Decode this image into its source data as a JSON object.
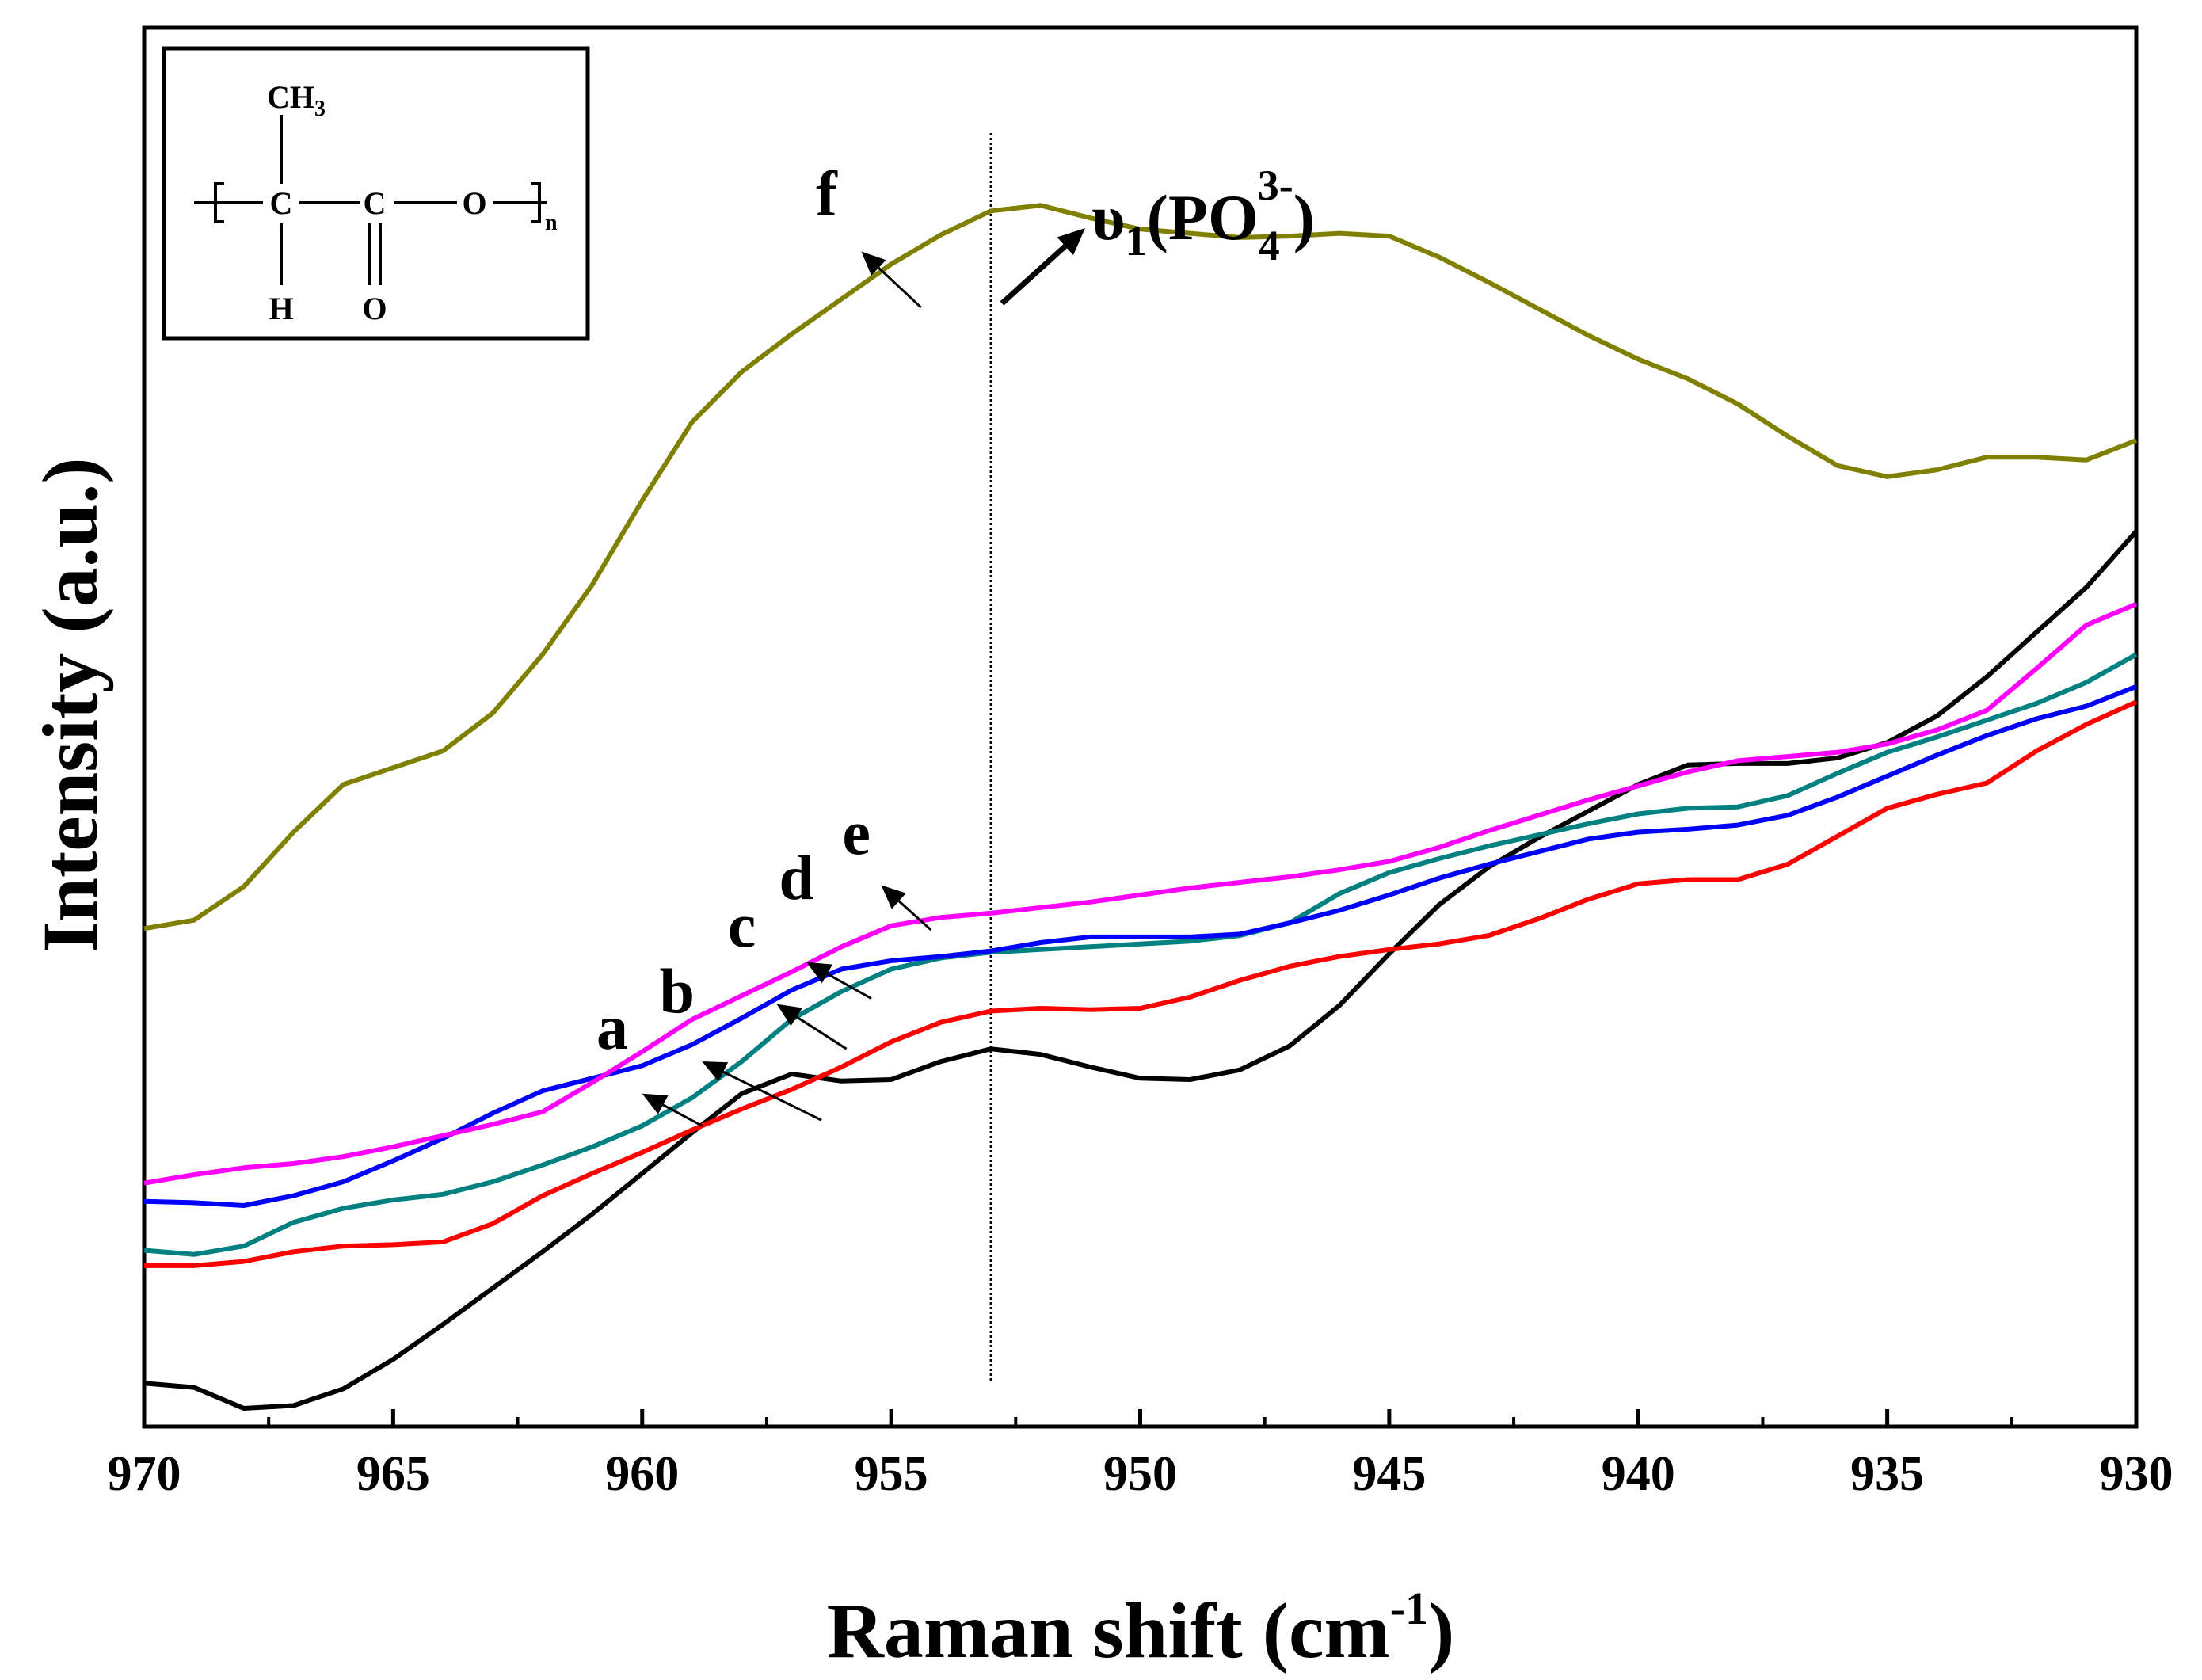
{
  "chart_data": {
    "type": "line",
    "xlabel": "Raman shift (cm",
    "xlabel_sup": "-1",
    "xlabel_close": ")",
    "ylabel": "Intensity (a.u.)",
    "xlim": [
      970,
      930
    ],
    "ylim": [
      0,
      100
    ],
    "x_ticks": [
      "970",
      "965",
      "960",
      "955",
      "950",
      "945",
      "940",
      "935",
      "930"
    ],
    "reference_line_x": 953,
    "annotation": {
      "prefix": "υ",
      "sub1": "1",
      "main": "(PO",
      "sub2": "4",
      "sup": "3-",
      "close": ")"
    },
    "inset_structure": {
      "ch3": "CH",
      "ch3_sub": "3",
      "c1": "C",
      "c2": "C",
      "o_chain": "O",
      "h": "H",
      "o_double": "O",
      "n": "n"
    },
    "series": [
      {
        "name": "a",
        "color": "#000000",
        "points": [
          [
            970,
            3.1
          ],
          [
            969,
            2.8
          ],
          [
            968,
            1.3
          ],
          [
            967,
            1.5
          ],
          [
            966,
            2.7
          ],
          [
            965,
            4.8
          ],
          [
            964,
            7.3
          ],
          [
            963,
            9.9
          ],
          [
            962,
            12.5
          ],
          [
            961,
            15.2
          ],
          [
            960,
            18.1
          ],
          [
            959,
            21.0
          ],
          [
            958,
            23.8
          ],
          [
            957,
            25.2
          ],
          [
            956,
            24.7
          ],
          [
            955,
            24.8
          ],
          [
            954,
            26.1
          ],
          [
            953,
            27.0
          ],
          [
            952,
            26.6
          ],
          [
            951,
            25.7
          ],
          [
            950,
            24.9
          ],
          [
            949,
            24.8
          ],
          [
            948,
            25.5
          ],
          [
            947,
            27.2
          ],
          [
            946,
            30.1
          ],
          [
            945,
            33.8
          ],
          [
            944,
            37.3
          ],
          [
            943,
            40.0
          ],
          [
            942,
            42.1
          ],
          [
            941,
            44.0
          ],
          [
            940,
            45.9
          ],
          [
            939,
            47.3
          ],
          [
            938,
            47.4
          ],
          [
            937,
            47.4
          ],
          [
            936,
            47.8
          ],
          [
            935,
            48.9
          ],
          [
            934,
            50.8
          ],
          [
            933,
            53.6
          ],
          [
            932,
            56.8
          ],
          [
            931,
            60.0
          ],
          [
            930,
            64.0
          ]
        ]
      },
      {
        "name": "b",
        "color": "#ff0000",
        "points": [
          [
            970,
            11.5
          ],
          [
            969,
            11.5
          ],
          [
            968,
            11.8
          ],
          [
            967,
            12.5
          ],
          [
            966,
            12.9
          ],
          [
            965,
            13.0
          ],
          [
            964,
            13.2
          ],
          [
            963,
            14.5
          ],
          [
            962,
            16.5
          ],
          [
            961,
            18.1
          ],
          [
            960,
            19.6
          ],
          [
            959,
            21.2
          ],
          [
            958,
            22.7
          ],
          [
            957,
            24.1
          ],
          [
            956,
            25.7
          ],
          [
            955,
            27.5
          ],
          [
            954,
            28.9
          ],
          [
            953,
            29.7
          ],
          [
            952,
            29.9
          ],
          [
            951,
            29.8
          ],
          [
            950,
            29.9
          ],
          [
            949,
            30.7
          ],
          [
            948,
            31.9
          ],
          [
            947,
            32.9
          ],
          [
            946,
            33.6
          ],
          [
            945,
            34.1
          ],
          [
            944,
            34.5
          ],
          [
            943,
            35.1
          ],
          [
            942,
            36.3
          ],
          [
            941,
            37.7
          ],
          [
            940,
            38.8
          ],
          [
            939,
            39.1
          ],
          [
            938,
            39.1
          ],
          [
            937,
            40.2
          ],
          [
            936,
            42.2
          ],
          [
            935,
            44.2
          ],
          [
            934,
            45.2
          ],
          [
            933,
            46.0
          ],
          [
            932,
            48.3
          ],
          [
            931,
            50.2
          ],
          [
            930,
            51.8
          ]
        ]
      },
      {
        "name": "c",
        "color": "#008080",
        "points": [
          [
            970,
            12.6
          ],
          [
            969,
            12.3
          ],
          [
            968,
            12.9
          ],
          [
            967,
            14.6
          ],
          [
            966,
            15.6
          ],
          [
            965,
            16.2
          ],
          [
            964,
            16.6
          ],
          [
            963,
            17.5
          ],
          [
            962,
            18.7
          ],
          [
            961,
            20.0
          ],
          [
            960,
            21.5
          ],
          [
            959,
            23.5
          ],
          [
            958,
            26.1
          ],
          [
            957,
            29.1
          ],
          [
            956,
            31.1
          ],
          [
            955,
            32.7
          ],
          [
            954,
            33.5
          ],
          [
            953,
            33.9
          ],
          [
            952,
            34.1
          ],
          [
            951,
            34.3
          ],
          [
            950,
            34.5
          ],
          [
            949,
            34.7
          ],
          [
            948,
            35.1
          ],
          [
            947,
            36.0
          ],
          [
            946,
            38.1
          ],
          [
            945,
            39.6
          ],
          [
            944,
            40.6
          ],
          [
            943,
            41.5
          ],
          [
            942,
            42.3
          ],
          [
            941,
            43.1
          ],
          [
            940,
            43.8
          ],
          [
            939,
            44.2
          ],
          [
            938,
            44.3
          ],
          [
            937,
            45.1
          ],
          [
            936,
            46.7
          ],
          [
            935,
            48.2
          ],
          [
            934,
            49.3
          ],
          [
            933,
            50.5
          ],
          [
            932,
            51.7
          ],
          [
            931,
            53.2
          ],
          [
            930,
            55.2
          ]
        ]
      },
      {
        "name": "d",
        "color": "#0000ff",
        "points": [
          [
            970,
            16.1
          ],
          [
            969,
            16.0
          ],
          [
            968,
            15.8
          ],
          [
            967,
            16.5
          ],
          [
            966,
            17.5
          ],
          [
            965,
            19.0
          ],
          [
            964,
            20.6
          ],
          [
            963,
            22.4
          ],
          [
            962,
            24.0
          ],
          [
            961,
            24.9
          ],
          [
            960,
            25.8
          ],
          [
            959,
            27.3
          ],
          [
            958,
            29.2
          ],
          [
            957,
            31.2
          ],
          [
            956,
            32.7
          ],
          [
            955,
            33.3
          ],
          [
            954,
            33.6
          ],
          [
            953,
            34.0
          ],
          [
            952,
            34.6
          ],
          [
            951,
            35.0
          ],
          [
            950,
            35.0
          ],
          [
            949,
            35.0
          ],
          [
            948,
            35.2
          ],
          [
            947,
            36.0
          ],
          [
            946,
            36.9
          ],
          [
            945,
            38.0
          ],
          [
            944,
            39.2
          ],
          [
            943,
            40.2
          ],
          [
            942,
            41.1
          ],
          [
            941,
            42.0
          ],
          [
            940,
            42.5
          ],
          [
            939,
            42.7
          ],
          [
            938,
            43.0
          ],
          [
            937,
            43.7
          ],
          [
            936,
            45.0
          ],
          [
            935,
            46.5
          ],
          [
            934,
            48.0
          ],
          [
            933,
            49.4
          ],
          [
            932,
            50.6
          ],
          [
            931,
            51.5
          ],
          [
            930,
            52.9
          ]
        ]
      },
      {
        "name": "e",
        "color": "#ff00ff",
        "points": [
          [
            970,
            17.4
          ],
          [
            969,
            18.0
          ],
          [
            968,
            18.5
          ],
          [
            967,
            18.8
          ],
          [
            966,
            19.3
          ],
          [
            965,
            20.0
          ],
          [
            964,
            20.8
          ],
          [
            963,
            21.6
          ],
          [
            962,
            22.5
          ],
          [
            961,
            24.6
          ],
          [
            960,
            26.8
          ],
          [
            959,
            29.1
          ],
          [
            958,
            30.8
          ],
          [
            957,
            32.5
          ],
          [
            956,
            34.3
          ],
          [
            955,
            35.8
          ],
          [
            954,
            36.4
          ],
          [
            953,
            36.7
          ],
          [
            952,
            37.1
          ],
          [
            951,
            37.5
          ],
          [
            950,
            38.0
          ],
          [
            949,
            38.5
          ],
          [
            948,
            38.9
          ],
          [
            947,
            39.3
          ],
          [
            946,
            39.8
          ],
          [
            945,
            40.4
          ],
          [
            944,
            41.4
          ],
          [
            943,
            42.6
          ],
          [
            942,
            43.7
          ],
          [
            941,
            44.8
          ],
          [
            940,
            45.8
          ],
          [
            939,
            46.8
          ],
          [
            938,
            47.6
          ],
          [
            937,
            47.9
          ],
          [
            936,
            48.2
          ],
          [
            935,
            48.8
          ],
          [
            934,
            49.8
          ],
          [
            933,
            51.2
          ],
          [
            932,
            54.2
          ],
          [
            931,
            57.3
          ],
          [
            930,
            58.8
          ]
        ]
      },
      {
        "name": "f",
        "color": "#808000",
        "points": [
          [
            970,
            35.6
          ],
          [
            969,
            36.2
          ],
          [
            968,
            38.6
          ],
          [
            967,
            42.5
          ],
          [
            966,
            45.9
          ],
          [
            965,
            47.1
          ],
          [
            964,
            48.3
          ],
          [
            963,
            51.0
          ],
          [
            962,
            55.2
          ],
          [
            961,
            60.2
          ],
          [
            960,
            66.2
          ],
          [
            959,
            71.8
          ],
          [
            958,
            75.4
          ],
          [
            957,
            78.1
          ],
          [
            956,
            80.6
          ],
          [
            955,
            83.1
          ],
          [
            954,
            85.2
          ],
          [
            953,
            86.9
          ],
          [
            952,
            87.3
          ],
          [
            951,
            86.4
          ],
          [
            950,
            85.6
          ],
          [
            949,
            85.3
          ],
          [
            948,
            85.0
          ],
          [
            947,
            85.1
          ],
          [
            946,
            85.3
          ],
          [
            945,
            85.1
          ],
          [
            944,
            83.6
          ],
          [
            943,
            81.8
          ],
          [
            942,
            79.9
          ],
          [
            941,
            78.0
          ],
          [
            940,
            76.3
          ],
          [
            939,
            74.9
          ],
          [
            938,
            73.1
          ],
          [
            937,
            70.8
          ],
          [
            936,
            68.7
          ],
          [
            935,
            67.9
          ],
          [
            934,
            68.4
          ],
          [
            933,
            69.3
          ],
          [
            932,
            69.3
          ],
          [
            931,
            69.1
          ],
          [
            930,
            70.5
          ]
        ]
      }
    ],
    "curve_labels": [
      {
        "name": "a",
        "text": "a",
        "tx": 960.6,
        "ty": 27.0,
        "arrow_from": [
          958.8,
          21.5
        ],
        "arrow_to": [
          960.0,
          23.8
        ]
      },
      {
        "name": "b",
        "text": "b",
        "tx": 959.3,
        "ty": 29.6,
        "arrow_from": [
          956.4,
          21.9
        ],
        "arrow_to": [
          958.8,
          26.1
        ]
      },
      {
        "name": "c",
        "text": "c",
        "tx": 958.0,
        "ty": 34.3,
        "arrow_from": [
          955.9,
          27.0
        ],
        "arrow_to": [
          957.3,
          30.2
        ]
      },
      {
        "name": "d",
        "text": "d",
        "tx": 956.9,
        "ty": 37.7,
        "arrow_from": [
          955.4,
          30.6
        ],
        "arrow_to": [
          956.7,
          33.2
        ]
      },
      {
        "name": "e",
        "text": "e",
        "tx": 955.7,
        "ty": 40.9,
        "arrow_from": [
          954.2,
          35.5
        ],
        "arrow_to": [
          955.2,
          38.7
        ]
      },
      {
        "name": "f",
        "text": "f",
        "tx": 956.3,
        "ty": 86.6,
        "arrow_from": [
          954.4,
          80.0
        ],
        "arrow_to": [
          955.6,
          84.0
        ]
      }
    ]
  }
}
